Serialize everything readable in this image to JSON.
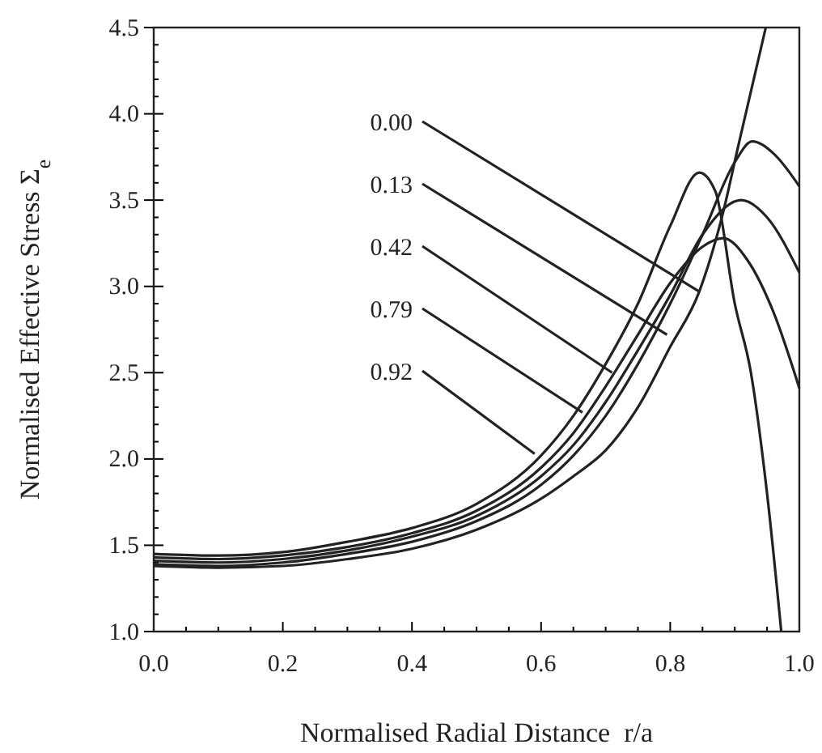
{
  "chart_data": {
    "type": "line",
    "xlabel": "Normalised Radial Distance  r/a",
    "ylabel": "Normalised Effective Stress Σ$_{e}$",
    "xlim": [
      0,
      1
    ],
    "ylim": [
      1,
      4.5
    ],
    "xticks": [
      {
        "value": 0,
        "label": "0.0"
      },
      {
        "value": 0.05,
        "label": null
      },
      {
        "value": 0.1,
        "label": null
      },
      {
        "value": 0.15,
        "label": null
      },
      "0.2",
      {
        "value": 0.25,
        "label": null
      },
      {
        "value": 0.3,
        "label": null
      },
      {
        "value": 0.35,
        "label": null
      },
      0.4,
      {
        "value": 0.45,
        "label": null
      },
      {
        "value": 0.5,
        "label": null
      },
      {
        "value": 0.55,
        "label": null
      },
      0.6,
      {
        "value": 0.65,
        "label": null
      },
      {
        "value": 0.7,
        "label": null
      },
      {
        "value": 0.75,
        "label": null
      },
      0.8,
      {
        "value": 0.85,
        "label": null
      },
      {
        "value": 0.9,
        "label": null
      },
      {
        "value": 0.95,
        "label": null
      },
      {
        "value": 1,
        "label": "1.0"
      }
    ],
    "yticks": [
      {
        "value": 1,
        "label": "1.0"
      },
      {
        "value": 1.1,
        "label": null
      },
      {
        "value": 1.2,
        "label": null
      },
      {
        "value": 1.3,
        "label": null
      },
      {
        "value": 1.4,
        "label": null
      },
      1.5,
      {
        "value": 1.6,
        "label": null
      },
      {
        "value": 1.7,
        "label": null
      },
      {
        "value": 1.8,
        "label": null
      },
      {
        "value": 1.9,
        "label": null
      },
      {
        "value": 2,
        "label": "2.0"
      },
      {
        "value": 2.1,
        "label": null
      },
      {
        "value": 2.2,
        "label": null
      },
      {
        "value": 2.3,
        "label": null
      },
      {
        "value": 2.4,
        "label": null
      },
      2.5,
      {
        "value": 2.6,
        "label": null
      },
      {
        "value": 2.7,
        "label": null
      },
      {
        "value": 2.8,
        "label": null
      },
      {
        "value": 2.9,
        "label": null
      },
      {
        "value": 3,
        "label": "3.0"
      },
      {
        "value": 3.1,
        "label": null
      },
      {
        "value": 3.2,
        "label": null
      },
      {
        "value": 3.3,
        "label": null
      },
      {
        "value": 3.4,
        "label": null
      },
      3.5,
      {
        "value": 3.6,
        "label": null
      },
      {
        "value": 3.7,
        "label": null
      },
      {
        "value": 3.8,
        "label": null
      },
      {
        "value": 3.9,
        "label": null
      },
      {
        "value": 4,
        "label": "4.0"
      },
      {
        "value": 4.1,
        "label": null
      },
      {
        "value": 4.2,
        "label": null
      },
      {
        "value": 4.3,
        "label": null
      },
      {
        "value": 4.4,
        "label": null
      },
      4.5
    ],
    "grid": false,
    "marker": "none",
    "annotations": [
      {
        "text": "0.00",
        "x": 0.845,
        "y": 2.97
      },
      {
        "text": "0.13",
        "x": 0.795,
        "y": 2.72
      },
      {
        "text": "0.42",
        "x": 0.71,
        "y": 2.5
      },
      {
        "text": "0.79",
        "x": 0.664,
        "y": 2.27
      },
      {
        "text": "0.92",
        "x": 0.59,
        "y": 2.03
      }
    ],
    "line_style": "solid",
    "series": [
      {
        "color": "#222222",
        "x": [
          0,
          0.1,
          0.2,
          0.3,
          0.4,
          0.5,
          0.6,
          0.65,
          0.7,
          0.75,
          0.8,
          0.845,
          0.88,
          0.907,
          0.948
        ],
        "values": [
          1.38,
          1.37,
          1.38,
          1.42,
          1.48,
          1.59,
          1.77,
          1.9,
          2.05,
          2.3,
          2.65,
          2.97,
          3.4,
          3.84,
          4.5
        ]
      },
      {
        "color": "#222222",
        "x": [
          0,
          0.1,
          0.2,
          0.3,
          0.4,
          0.5,
          0.6,
          0.65,
          0.7,
          0.75,
          0.8,
          0.85,
          0.9,
          0.927,
          0.96,
          1
        ],
        "values": [
          1.39,
          1.38,
          1.4,
          1.45,
          1.52,
          1.64,
          1.85,
          2.02,
          2.25,
          2.55,
          2.9,
          3.3,
          3.72,
          3.84,
          3.77,
          3.58
        ]
      },
      {
        "color": "#222222",
        "x": [
          0,
          0.1,
          0.2,
          0.3,
          0.4,
          0.5,
          0.6,
          0.65,
          0.7,
          0.75,
          0.8,
          0.85,
          0.91,
          0.95,
          1
        ],
        "values": [
          1.41,
          1.4,
          1.42,
          1.47,
          1.55,
          1.67,
          1.9,
          2.08,
          2.33,
          2.63,
          2.95,
          3.3,
          3.5,
          3.4,
          3.08
        ]
      },
      {
        "color": "#222222",
        "x": [
          0,
          0.1,
          0.2,
          0.3,
          0.4,
          0.5,
          0.6,
          0.65,
          0.7,
          0.75,
          0.8,
          0.85,
          0.882,
          0.92,
          0.96,
          1
        ],
        "values": [
          1.43,
          1.42,
          1.44,
          1.49,
          1.57,
          1.7,
          1.95,
          2.15,
          2.42,
          2.72,
          3.02,
          3.23,
          3.28,
          3.15,
          2.85,
          2.41
        ]
      },
      {
        "color": "#222222",
        "x": [
          0,
          0.1,
          0.2,
          0.3,
          0.4,
          0.5,
          0.6,
          0.65,
          0.7,
          0.75,
          0.8,
          0.845,
          0.87,
          0.9,
          0.925,
          0.95,
          0.972
        ],
        "values": [
          1.45,
          1.44,
          1.46,
          1.52,
          1.6,
          1.74,
          2.02,
          2.25,
          2.55,
          2.9,
          3.35,
          3.66,
          3.55,
          2.9,
          2.5,
          1.8,
          1.0
        ]
      }
    ]
  }
}
